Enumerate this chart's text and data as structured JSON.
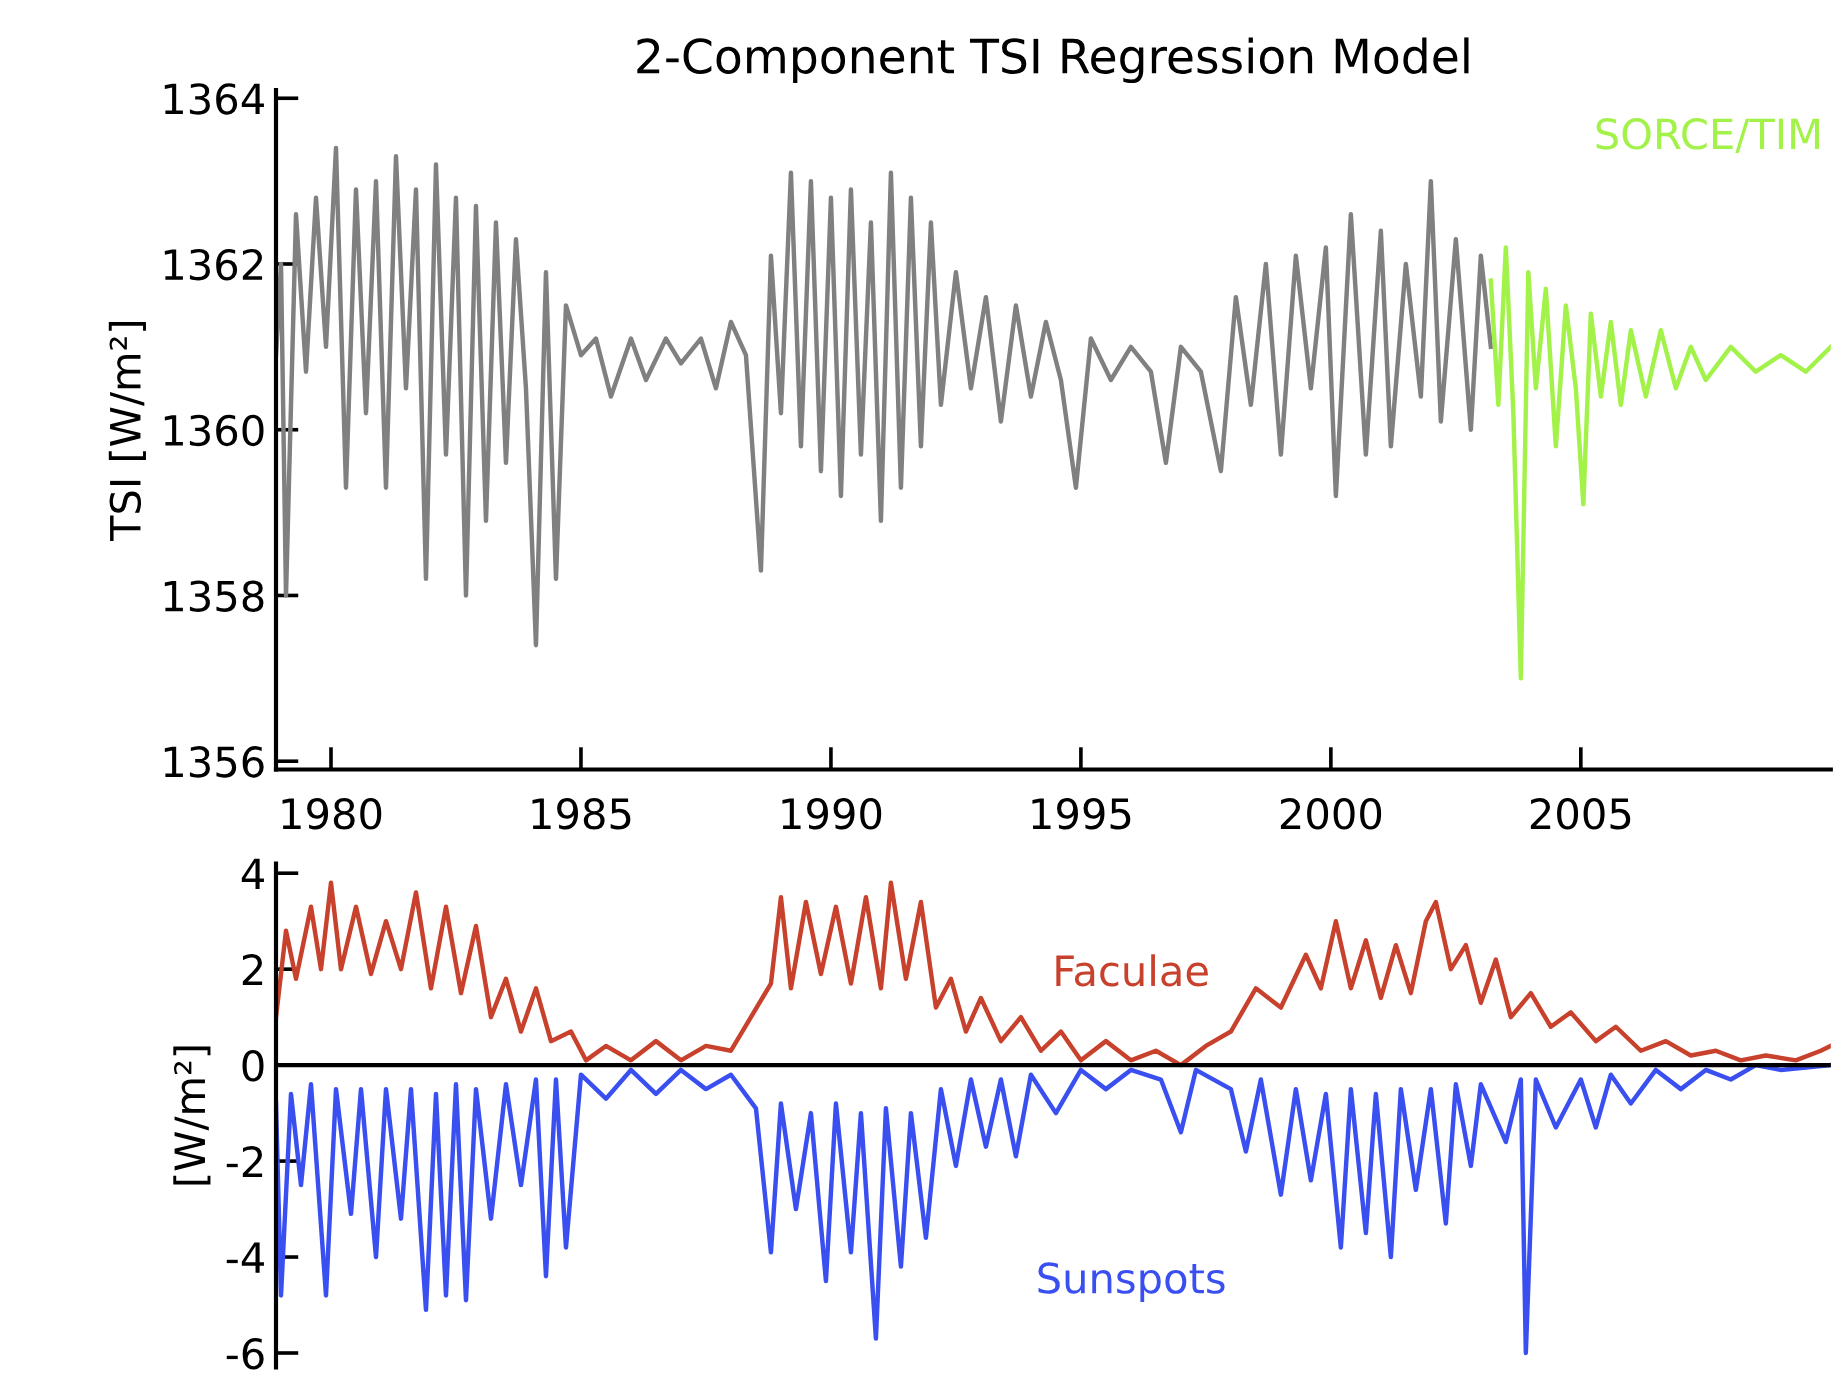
{
  "chart_data": [
    {
      "type": "line",
      "title": "2-Component TSI Regression Model",
      "ylabel": "TSI [W/m²]",
      "xlim": [
        1978.9,
        2010.0
      ],
      "xticks": [
        1980,
        1985,
        1990,
        1995,
        2000,
        2005
      ],
      "ylim": [
        1355.9,
        1364.1
      ],
      "yticks": [
        1356,
        1358,
        1360,
        1362,
        1364
      ],
      "grid": false,
      "legend": false,
      "marker": "none",
      "line_style": "solid",
      "series": [
        {
          "color": "#808080",
          "x": [
            1978.9,
            1979.0,
            1979.1,
            1979.3,
            1979.5,
            1979.7,
            1979.9,
            1980.1,
            1980.3,
            1980.5,
            1980.7,
            1980.9,
            1981.1,
            1981.3,
            1981.5,
            1981.7,
            1981.9,
            1982.1,
            1982.3,
            1982.5,
            1982.7,
            1982.9,
            1983.1,
            1983.3,
            1983.5,
            1983.7,
            1983.9,
            1984.1,
            1984.3,
            1984.5,
            1984.7,
            1985.0,
            1985.3,
            1985.6,
            1986.0,
            1986.3,
            1986.7,
            1987.0,
            1987.4,
            1987.7,
            1988.0,
            1988.3,
            1988.6,
            1988.8,
            1989.0,
            1989.2,
            1989.4,
            1989.6,
            1989.8,
            1990.0,
            1990.2,
            1990.4,
            1990.6,
            1990.8,
            1991.0,
            1991.2,
            1991.4,
            1991.6,
            1991.8,
            1992.0,
            1992.2,
            1992.5,
            1992.8,
            1993.1,
            1993.4,
            1993.7,
            1994.0,
            1994.3,
            1994.6,
            1994.9,
            1995.2,
            1995.6,
            1996.0,
            1996.4,
            1996.7,
            1997.0,
            1997.4,
            1997.8,
            1998.1,
            1998.4,
            1998.7,
            1999.0,
            1999.3,
            1999.6,
            1999.9,
            2000.1,
            2000.4,
            2000.7,
            2001.0,
            2001.2,
            2001.5,
            2001.8,
            2002.0,
            2002.2,
            2002.5,
            2002.8,
            2003.0,
            2003.2
          ],
          "values": [
            1360.9,
            1362.0,
            1358.0,
            1362.6,
            1360.7,
            1362.8,
            1361.0,
            1363.4,
            1359.3,
            1362.9,
            1360.2,
            1363.0,
            1359.3,
            1363.3,
            1360.5,
            1362.9,
            1358.2,
            1363.2,
            1359.7,
            1362.8,
            1358.0,
            1362.7,
            1358.9,
            1362.5,
            1359.6,
            1362.3,
            1360.5,
            1357.4,
            1361.9,
            1358.2,
            1361.5,
            1360.9,
            1361.1,
            1360.4,
            1361.1,
            1360.6,
            1361.1,
            1360.8,
            1361.1,
            1360.5,
            1361.3,
            1360.9,
            1358.3,
            1362.1,
            1360.2,
            1363.1,
            1359.8,
            1363.0,
            1359.5,
            1362.8,
            1359.2,
            1362.9,
            1359.7,
            1362.5,
            1358.9,
            1363.1,
            1359.3,
            1362.8,
            1359.8,
            1362.5,
            1360.3,
            1361.9,
            1360.5,
            1361.6,
            1360.1,
            1361.5,
            1360.4,
            1361.3,
            1360.6,
            1359.3,
            1361.1,
            1360.6,
            1361.0,
            1360.7,
            1359.6,
            1361.0,
            1360.7,
            1359.5,
            1361.6,
            1360.3,
            1362.0,
            1359.7,
            1362.1,
            1360.5,
            1362.2,
            1359.2,
            1362.6,
            1359.7,
            1362.4,
            1359.8,
            1362.0,
            1360.4,
            1363.0,
            1360.1,
            1362.3,
            1360.0,
            1362.1,
            1361.0
          ]
        },
        {
          "name": "SORCE/TIM",
          "color": "#a2f24a",
          "x": [
            2003.2,
            2003.35,
            2003.5,
            2003.65,
            2003.8,
            2003.95,
            2004.1,
            2004.3,
            2004.5,
            2004.7,
            2004.9,
            2005.05,
            2005.2,
            2005.4,
            2005.6,
            2005.8,
            2006.0,
            2006.3,
            2006.6,
            2006.9,
            2007.2,
            2007.5,
            2008.0,
            2008.5,
            2009.0,
            2009.5,
            2010.0
          ],
          "values": [
            1361.8,
            1360.3,
            1362.2,
            1360.2,
            1357.0,
            1361.9,
            1360.5,
            1361.7,
            1359.8,
            1361.5,
            1360.5,
            1359.1,
            1361.4,
            1360.4,
            1361.3,
            1360.3,
            1361.2,
            1360.4,
            1361.2,
            1360.5,
            1361.0,
            1360.6,
            1361.0,
            1360.7,
            1360.9,
            1360.7,
            1361.0
          ]
        }
      ]
    },
    {
      "type": "line",
      "ylabel": "[W/m²]",
      "xlim": [
        1978.9,
        2010.0
      ],
      "ylim": [
        -6.3,
        4.2
      ],
      "yticks": [
        -6,
        -4,
        -2,
        0,
        2,
        4
      ],
      "tick_labels": "y",
      "grid": false,
      "legend": false,
      "marker": "none",
      "line_style": "solid",
      "ref_lines": [
        {
          "axis": "y",
          "value": 0,
          "color": "#000000"
        }
      ],
      "series": [
        {
          "name": "Faculae",
          "color": "#c8412c",
          "x": [
            1978.9,
            1979.1,
            1979.3,
            1979.6,
            1979.8,
            1980.0,
            1980.2,
            1980.5,
            1980.8,
            1981.1,
            1981.4,
            1981.7,
            1982.0,
            1982.3,
            1982.6,
            1982.9,
            1983.2,
            1983.5,
            1983.8,
            1984.1,
            1984.4,
            1984.8,
            1985.1,
            1985.5,
            1986.0,
            1986.5,
            1987.0,
            1987.5,
            1988.0,
            1988.4,
            1988.8,
            1989.0,
            1989.2,
            1989.5,
            1989.8,
            1990.1,
            1990.4,
            1990.7,
            1991.0,
            1991.2,
            1991.5,
            1991.8,
            1992.1,
            1992.4,
            1992.7,
            1993.0,
            1993.4,
            1993.8,
            1994.2,
            1994.6,
            1995.0,
            1995.5,
            1996.0,
            1996.5,
            1997.0,
            1997.5,
            1998.0,
            1998.5,
            1999.0,
            1999.5,
            1999.8,
            2000.1,
            2000.4,
            2000.7,
            2001.0,
            2001.3,
            2001.6,
            2001.9,
            2002.1,
            2002.4,
            2002.7,
            2003.0,
            2003.3,
            2003.6,
            2004.0,
            2004.4,
            2004.8,
            2005.3,
            2005.7,
            2006.2,
            2006.7,
            2007.2,
            2007.7,
            2008.2,
            2008.7,
            2009.3,
            2009.8,
            2010.0
          ],
          "values": [
            1.0,
            2.8,
            1.8,
            3.3,
            2.0,
            3.8,
            2.0,
            3.3,
            1.9,
            3.0,
            2.0,
            3.6,
            1.6,
            3.3,
            1.5,
            2.9,
            1.0,
            1.8,
            0.7,
            1.6,
            0.5,
            0.7,
            0.1,
            0.4,
            0.1,
            0.5,
            0.1,
            0.4,
            0.3,
            1.0,
            1.7,
            3.5,
            1.6,
            3.4,
            1.9,
            3.3,
            1.7,
            3.5,
            1.6,
            3.8,
            1.8,
            3.4,
            1.2,
            1.8,
            0.7,
            1.4,
            0.5,
            1.0,
            0.3,
            0.7,
            0.1,
            0.5,
            0.1,
            0.3,
            0.0,
            0.4,
            0.7,
            1.6,
            1.2,
            2.3,
            1.6,
            3.0,
            1.6,
            2.6,
            1.4,
            2.5,
            1.5,
            3.0,
            3.4,
            2.0,
            2.5,
            1.3,
            2.2,
            1.0,
            1.5,
            0.8,
            1.1,
            0.5,
            0.8,
            0.3,
            0.5,
            0.2,
            0.3,
            0.1,
            0.2,
            0.1,
            0.3,
            0.4
          ]
        },
        {
          "name": "Sunspots",
          "color": "#3a4ff0",
          "x": [
            1978.9,
            1979.0,
            1979.2,
            1979.4,
            1979.6,
            1979.9,
            1980.1,
            1980.4,
            1980.6,
            1980.9,
            1981.1,
            1981.4,
            1981.6,
            1981.9,
            1982.1,
            1982.3,
            1982.5,
            1982.7,
            1982.9,
            1983.2,
            1983.5,
            1983.8,
            1984.1,
            1984.3,
            1984.5,
            1984.7,
            1985.0,
            1985.5,
            1986.0,
            1986.5,
            1987.0,
            1987.5,
            1988.0,
            1988.5,
            1988.8,
            1989.0,
            1989.3,
            1989.6,
            1989.9,
            1990.1,
            1990.4,
            1990.6,
            1990.9,
            1991.1,
            1991.4,
            1991.6,
            1991.9,
            1992.2,
            1992.5,
            1992.8,
            1993.1,
            1993.4,
            1993.7,
            1994.0,
            1994.5,
            1995.0,
            1995.5,
            1996.0,
            1996.6,
            1997.0,
            1997.3,
            1998.0,
            1998.3,
            1998.6,
            1999.0,
            1999.3,
            1999.6,
            1999.9,
            2000.2,
            2000.4,
            2000.7,
            2000.9,
            2001.2,
            2001.4,
            2001.7,
            2002.0,
            2002.3,
            2002.5,
            2002.8,
            2003.0,
            2003.5,
            2003.8,
            2003.9,
            2004.1,
            2004.5,
            2005.0,
            2005.3,
            2005.6,
            2006.0,
            2006.5,
            2007.0,
            2007.5,
            2008.0,
            2008.5,
            2009.0,
            2010.0
          ],
          "values": [
            -0.8,
            -4.8,
            -0.6,
            -2.5,
            -0.4,
            -4.8,
            -0.5,
            -3.1,
            -0.5,
            -4.0,
            -0.5,
            -3.2,
            -0.5,
            -5.1,
            -0.6,
            -4.8,
            -0.4,
            -4.9,
            -0.5,
            -3.2,
            -0.4,
            -2.5,
            -0.3,
            -4.4,
            -0.3,
            -3.8,
            -0.2,
            -0.7,
            -0.1,
            -0.6,
            -0.1,
            -0.5,
            -0.2,
            -0.9,
            -3.9,
            -0.8,
            -3.0,
            -1.0,
            -4.5,
            -0.8,
            -3.9,
            -1.0,
            -5.7,
            -0.9,
            -4.2,
            -1.0,
            -3.6,
            -0.5,
            -2.1,
            -0.3,
            -1.7,
            -0.3,
            -1.9,
            -0.2,
            -1.0,
            -0.1,
            -0.5,
            -0.1,
            -0.3,
            -1.4,
            -0.1,
            -0.5,
            -1.8,
            -0.3,
            -2.7,
            -0.5,
            -2.4,
            -0.6,
            -3.8,
            -0.5,
            -3.5,
            -0.6,
            -4.0,
            -0.5,
            -2.6,
            -0.5,
            -3.3,
            -0.4,
            -2.1,
            -0.4,
            -1.6,
            -0.3,
            -6.0,
            -0.3,
            -1.3,
            -0.3,
            -1.3,
            -0.2,
            -0.8,
            -0.1,
            -0.5,
            -0.1,
            -0.3,
            0.0,
            -0.1,
            0.0
          ]
        }
      ]
    }
  ]
}
